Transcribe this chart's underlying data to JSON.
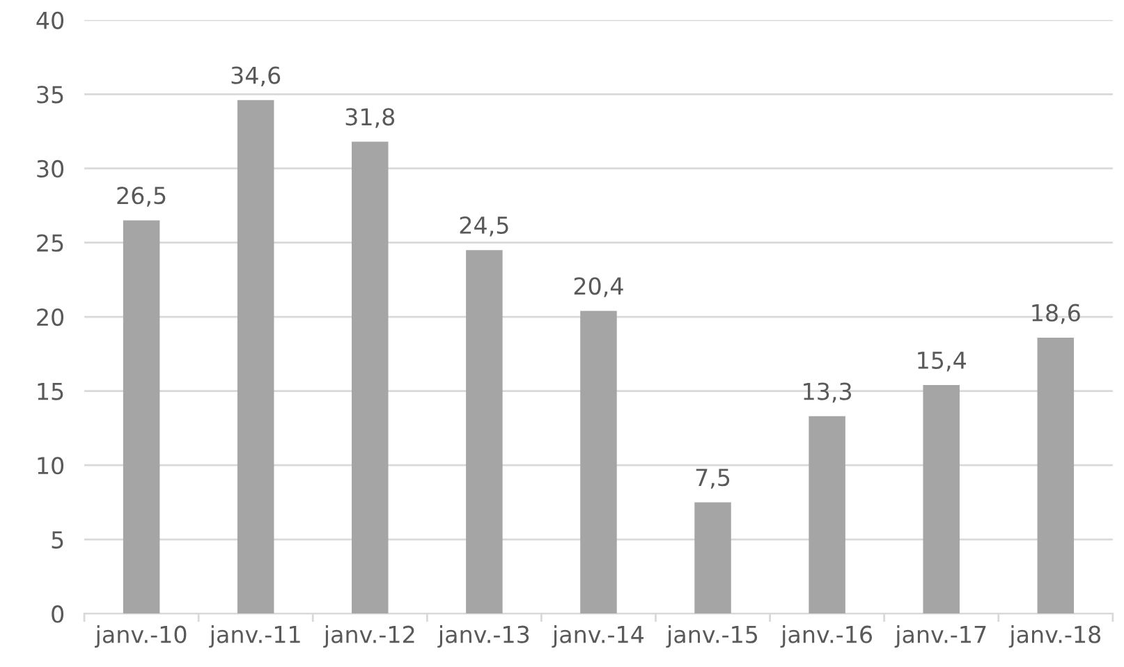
{
  "chart_data": {
    "type": "bar",
    "categories": [
      "janv.-10",
      "janv.-11",
      "janv.-12",
      "janv.-13",
      "janv.-14",
      "janv.-15",
      "janv.-16",
      "janv.-17",
      "janv.-18"
    ],
    "values": [
      26.5,
      34.6,
      31.8,
      24.5,
      20.4,
      7.5,
      13.3,
      15.4,
      18.6
    ],
    "value_labels": [
      "26,5",
      "34,6",
      "31,8",
      "24,5",
      "20,4",
      "7,5",
      "13,3",
      "15,4",
      "18,6"
    ],
    "color": "#a5a5a5",
    "ylim": [
      0,
      40
    ],
    "yticks": [
      0,
      5,
      10,
      15,
      20,
      25,
      30,
      35,
      40
    ],
    "grid": "y"
  }
}
